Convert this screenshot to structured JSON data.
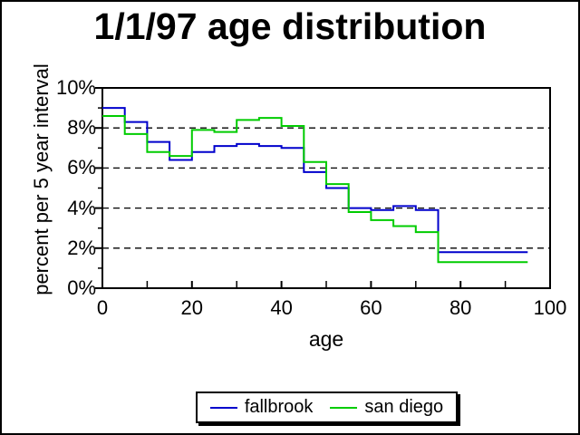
{
  "window": {
    "background": "#FFFFFF",
    "frame_color": "#000000"
  },
  "chart_data": {
    "type": "step-line",
    "title": "1/1/97 age distribution",
    "xlabel": "age",
    "ylabel": "percent per 5 year interval",
    "xlim": [
      0,
      100
    ],
    "ylim_percent": [
      0,
      10
    ],
    "x_tick_labels": [
      "0",
      "20",
      "40",
      "60",
      "80",
      "100"
    ],
    "x_tick_values": [
      0,
      20,
      40,
      60,
      80,
      100
    ],
    "x_minor_tick_values": [
      10,
      30,
      50,
      70,
      90
    ],
    "y_tick_labels": [
      "10%",
      "8%",
      "6%",
      "4%",
      "2%",
      "0%"
    ],
    "y_tick_values": [
      10,
      8,
      6,
      4,
      2,
      0
    ],
    "y_minor_tick_values": [
      9,
      7,
      5,
      3,
      1
    ],
    "gridlines_y_percent": [
      8,
      6,
      4,
      2
    ],
    "grid_style": "dashed",
    "legend_position": "bottom-center",
    "bin_width_years": 5,
    "bin_start_ages": [
      0,
      5,
      10,
      15,
      20,
      25,
      30,
      35,
      40,
      45,
      50,
      55,
      60,
      65,
      70,
      75,
      80,
      85,
      90
    ],
    "series": [
      {
        "name": "fallbrook",
        "color": "#0000CC",
        "values_percent": [
          9.0,
          8.3,
          7.3,
          6.4,
          6.8,
          7.1,
          7.2,
          7.1,
          7.0,
          5.8,
          5.0,
          4.0,
          3.9,
          4.1,
          3.9,
          1.8,
          1.8,
          1.8,
          1.8
        ]
      },
      {
        "name": "san diego",
        "color": "#00CC00",
        "values_percent": [
          8.6,
          7.7,
          6.8,
          6.6,
          7.9,
          7.8,
          8.4,
          8.5,
          8.1,
          6.3,
          5.2,
          3.8,
          3.4,
          3.1,
          2.8,
          1.3,
          1.3,
          1.3,
          1.3
        ]
      }
    ]
  }
}
